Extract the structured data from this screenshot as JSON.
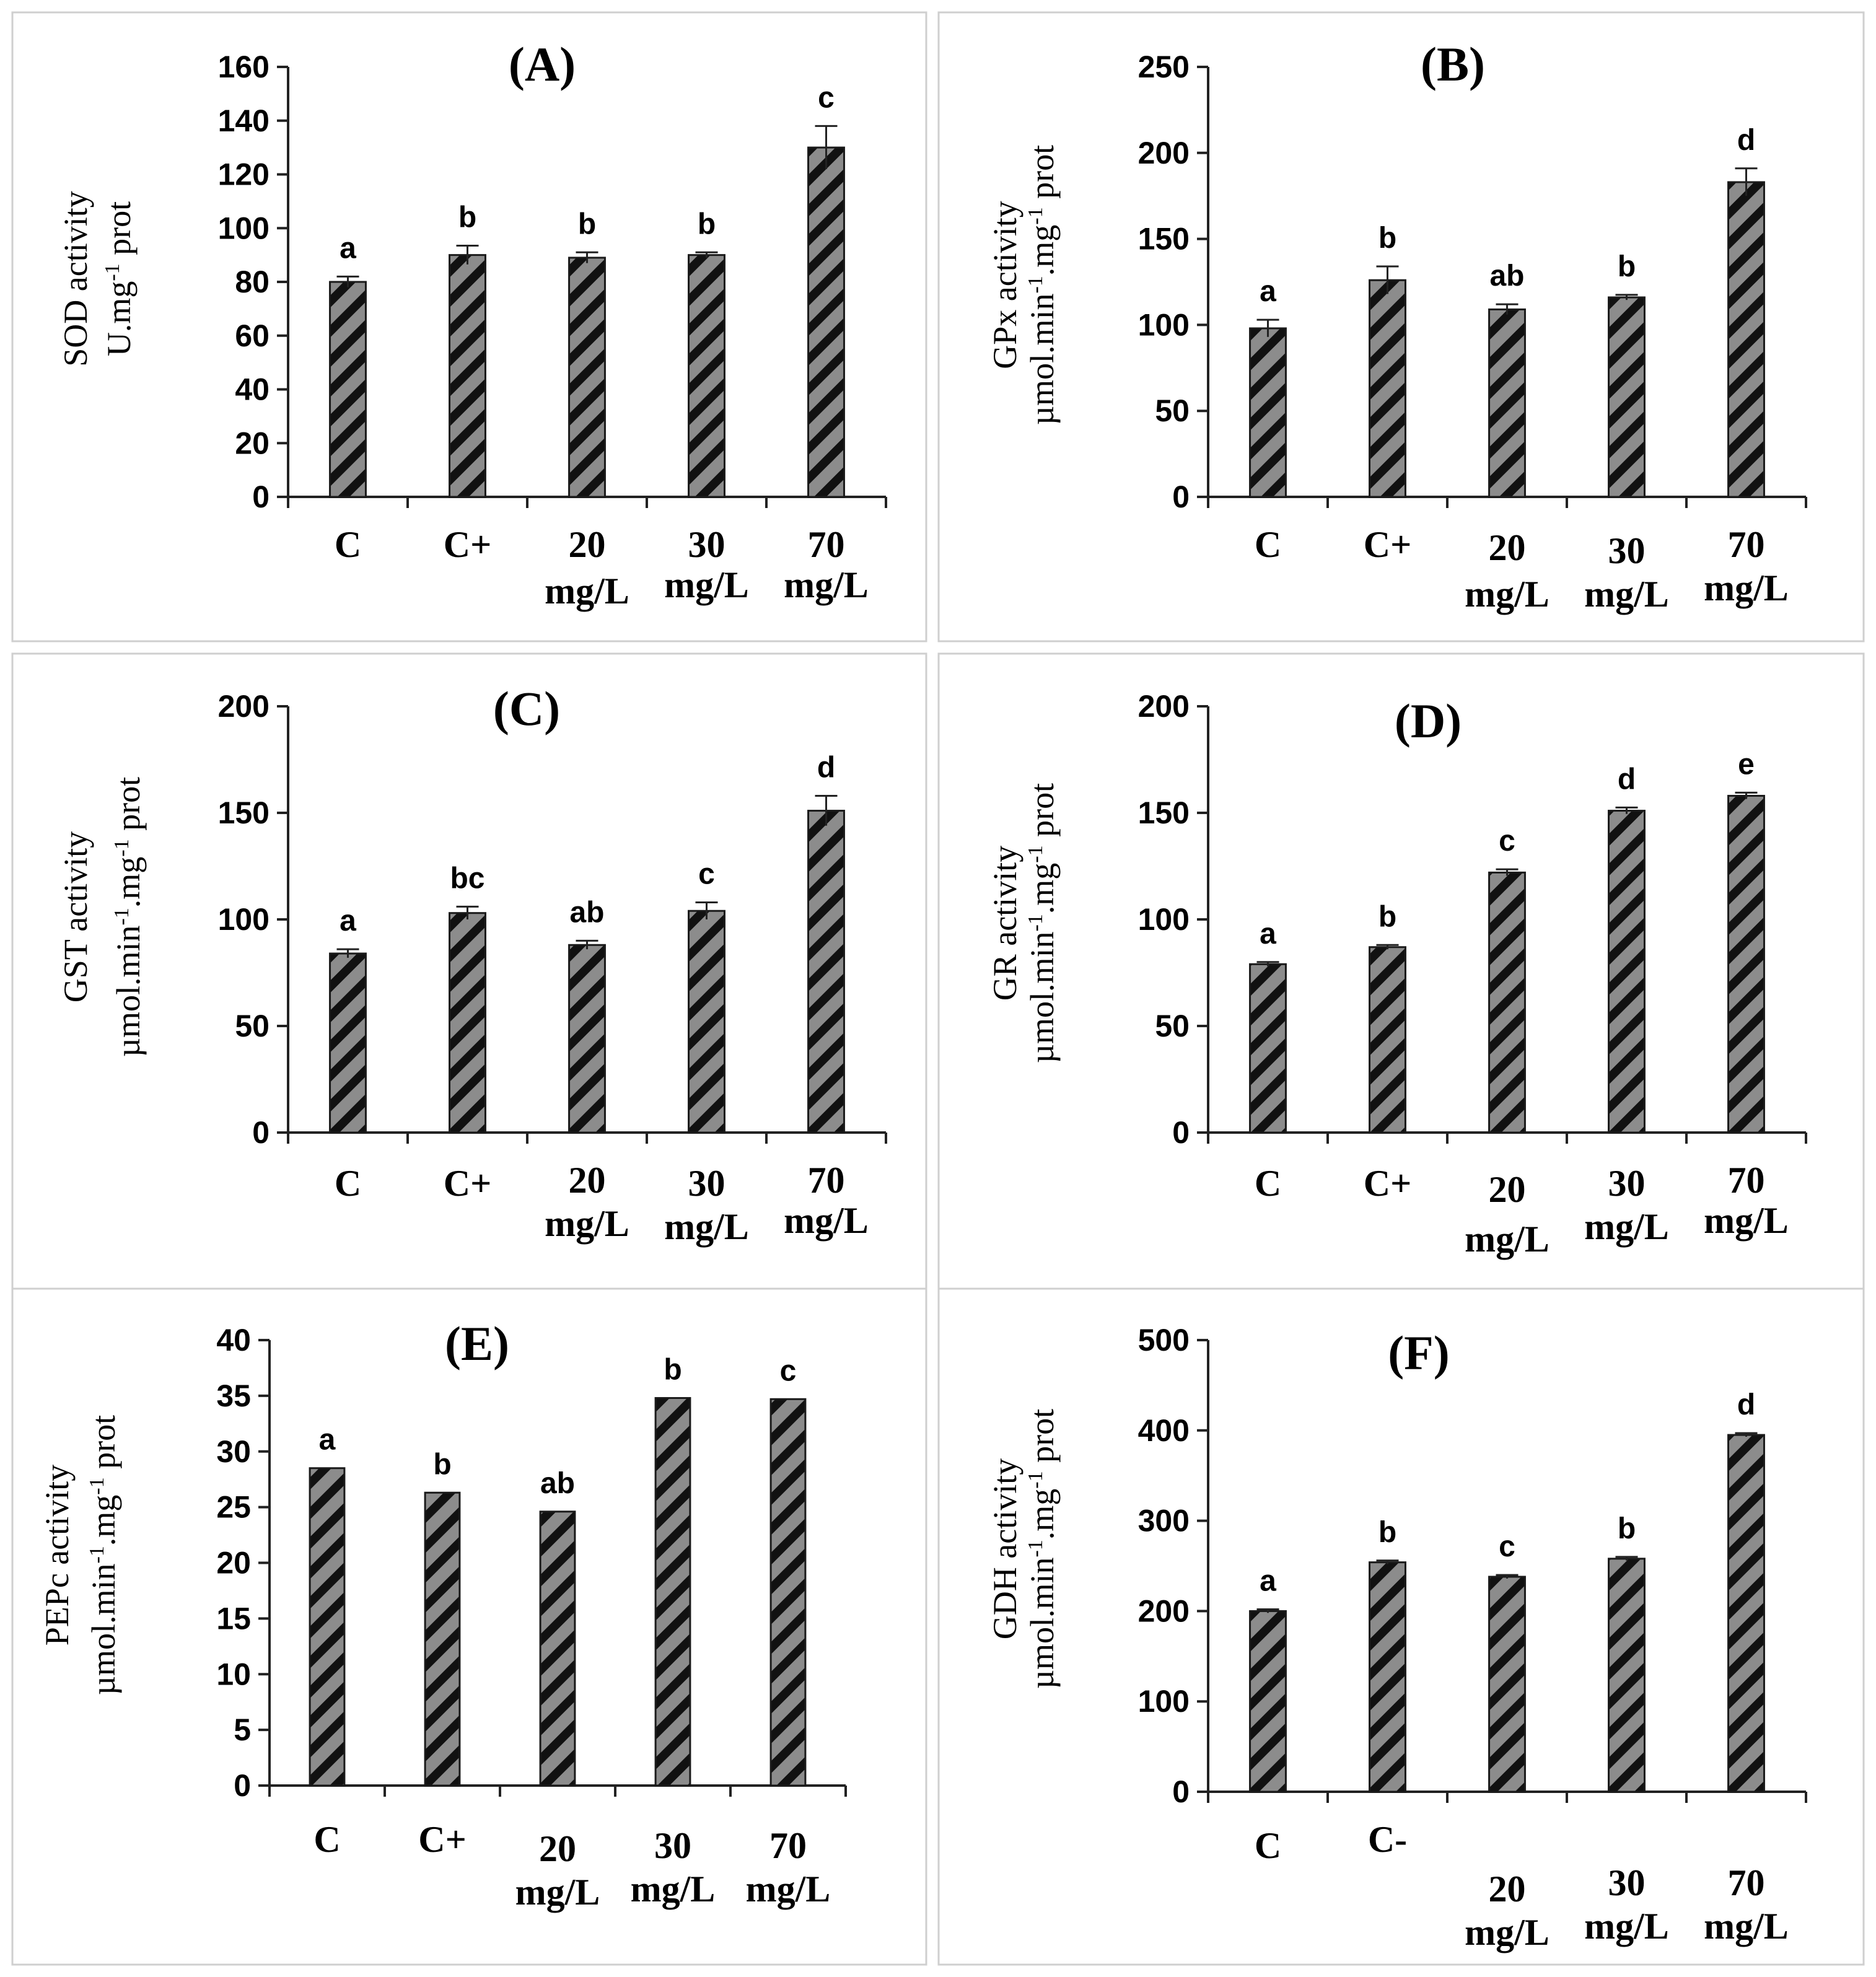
{
  "figure_colors": {
    "bar_fill": "#8c8c8c",
    "hatch": "#111111",
    "axis": "#222222",
    "border": "#cfcfcf"
  },
  "chart_data": [
    {
      "type": "bar",
      "panel": "A",
      "title": "(A)",
      "ylabel_line1": "SOD activity",
      "ylabel_line2": "U.mg",
      "ylabel_sup": "-1",
      "ylabel_suffix": " prot",
      "ylim": [
        0,
        160
      ],
      "yticks": [
        0,
        20,
        40,
        60,
        80,
        100,
        120,
        140,
        160
      ],
      "categories": [
        [
          "C"
        ],
        [
          "C+"
        ],
        [
          "20",
          "mg/L"
        ],
        [
          "30",
          "mg/L"
        ],
        [
          "70",
          "mg/L"
        ]
      ],
      "values": [
        80,
        90,
        89,
        90,
        130
      ],
      "errors": [
        2,
        3.5,
        2,
        1,
        8
      ],
      "letters": [
        "a",
        "b",
        "b",
        "b",
        "c"
      ]
    },
    {
      "type": "bar",
      "panel": "B",
      "title": "(B)",
      "ylabel_line1": "GPx activity",
      "ylabel_line2": "µmol.min",
      "ylabel_sup": "-1",
      "ylabel_mid": ".mg",
      "ylabel_sup2": "-1",
      "ylabel_suffix": " prot",
      "ylim": [
        0,
        250
      ],
      "yticks": [
        0,
        50,
        100,
        150,
        200,
        250
      ],
      "categories": [
        [
          "C"
        ],
        [
          "C+"
        ],
        [
          "20",
          "mg/L"
        ],
        [
          "30",
          "mg/L"
        ],
        [
          "70",
          "mg/L"
        ]
      ],
      "values": [
        98,
        126,
        109,
        116,
        183
      ],
      "errors": [
        5,
        8,
        3,
        1.5,
        8
      ],
      "letters": [
        "a",
        "b",
        "ab",
        "b",
        "d"
      ]
    },
    {
      "type": "bar",
      "panel": "C",
      "title": "(C)",
      "ylabel_line1": "GST activity",
      "ylabel_line2": "µmol.min",
      "ylabel_sup": "-1",
      "ylabel_mid": ".mg",
      "ylabel_sup2": "-1",
      "ylabel_suffix": " prot",
      "ylim": [
        0,
        200
      ],
      "yticks": [
        0,
        50,
        100,
        150,
        200
      ],
      "categories": [
        [
          "C"
        ],
        [
          "C+"
        ],
        [
          "20",
          "mg/L"
        ],
        [
          "30",
          "mg/L"
        ],
        [
          "70",
          "mg/L"
        ]
      ],
      "values": [
        84,
        103,
        88,
        104,
        151
      ],
      "errors": [
        2,
        3,
        2,
        4,
        7
      ],
      "letters": [
        "a",
        "bc",
        "ab",
        "c",
        "d"
      ]
    },
    {
      "type": "bar",
      "panel": "D",
      "title": "(D)",
      "ylabel_line1": "GR activity",
      "ylabel_line2": "µmol.min",
      "ylabel_sup": "-1",
      "ylabel_mid": ".mg",
      "ylabel_sup2": "-1",
      "ylabel_suffix": " prot",
      "ylim": [
        0,
        200
      ],
      "yticks": [
        0,
        50,
        100,
        150,
        200
      ],
      "categories": [
        [
          "C"
        ],
        [
          "C+"
        ],
        [
          "20",
          "mg/L"
        ],
        [
          "30",
          "mg/L"
        ],
        [
          "70",
          "mg/L"
        ]
      ],
      "values": [
        79,
        87,
        122,
        151,
        158
      ],
      "errors": [
        1,
        1,
        1.5,
        1.5,
        1.5
      ],
      "letters": [
        "a",
        "b",
        "c",
        "d",
        "e"
      ]
    },
    {
      "type": "bar",
      "panel": "E",
      "title": "(E)",
      "ylabel_line1": "PEPc activity",
      "ylabel_line2": "µmol.min",
      "ylabel_sup": "-1",
      "ylabel_mid": ".mg",
      "ylabel_sup2": "-1",
      "ylabel_suffix": " prot",
      "ylim": [
        0,
        40
      ],
      "yticks": [
        0,
        5,
        10,
        15,
        20,
        25,
        30,
        35,
        40
      ],
      "categories": [
        [
          "C"
        ],
        [
          "C+"
        ],
        [
          "20",
          "mg/L"
        ],
        [
          "30",
          "mg/L"
        ],
        [
          "70",
          "mg/L"
        ]
      ],
      "values": [
        28.5,
        26.3,
        24.6,
        34.8,
        34.7
      ],
      "errors": [
        0,
        0,
        0,
        0,
        0
      ],
      "letters": [
        "a",
        "b",
        "ab",
        "b",
        "c"
      ]
    },
    {
      "type": "bar",
      "panel": "F",
      "title": "(F)",
      "ylabel_line1": "GDH activity",
      "ylabel_line2": "µmol.min",
      "ylabel_sup": "-1",
      "ylabel_mid": ".mg",
      "ylabel_sup2": "-1",
      "ylabel_suffix": " prot",
      "ylim": [
        0,
        500
      ],
      "yticks": [
        0,
        100,
        200,
        300,
        400,
        500
      ],
      "categories": [
        [
          "C"
        ],
        [
          "C-"
        ],
        [
          "20",
          "mg/L"
        ],
        [
          "30",
          "mg/L"
        ],
        [
          "70",
          "mg/L"
        ]
      ],
      "values": [
        200,
        254,
        238,
        258,
        395
      ],
      "errors": [
        2,
        2,
        2,
        2,
        2
      ],
      "letters": [
        "a",
        "b",
        "c",
        "b",
        "d"
      ]
    }
  ]
}
